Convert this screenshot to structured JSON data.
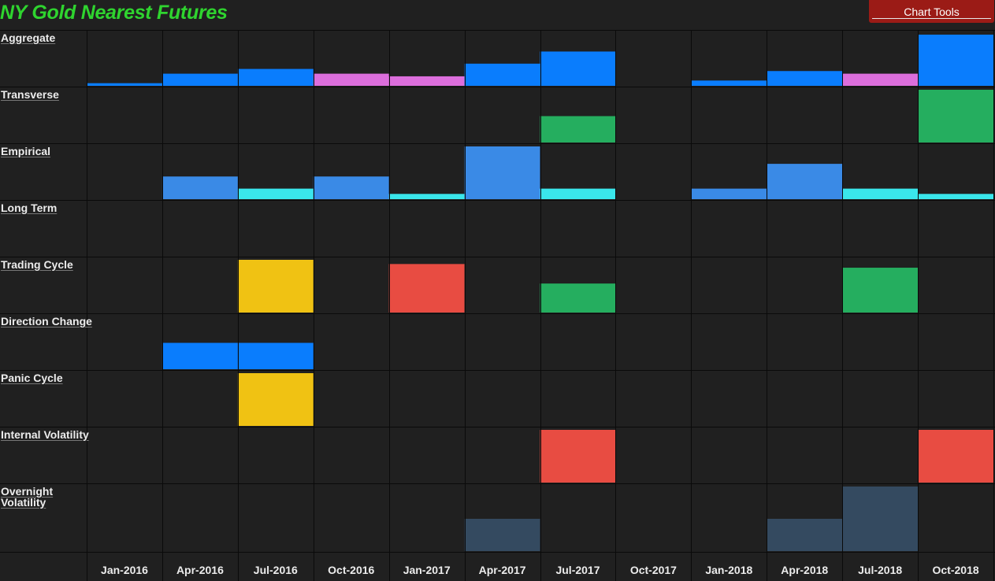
{
  "header": {
    "title": "NY Gold Nearest Futures",
    "chart_tools_label": "Chart Tools"
  },
  "colors": {
    "background": "#202020",
    "grid": "#0a0a0a",
    "blue": "#0a7dfd",
    "pink": "#dc6edc",
    "green": "#25ae5f",
    "lightblue": "#3a8ae6",
    "cyan": "#3ae6eb",
    "yellow": "#f0c213",
    "red": "#e84c42",
    "slate": "#344a60"
  },
  "chart_data": {
    "type": "heatmap",
    "title": "NY Gold Nearest Futures",
    "categories": [
      "Jan-2016",
      "Apr-2016",
      "Jul-2016",
      "Oct-2016",
      "Jan-2017",
      "Apr-2017",
      "Jul-2017",
      "Oct-2017",
      "Jan-2018",
      "Apr-2018",
      "Jul-2018",
      "Oct-2018"
    ],
    "value_scale": "0-1 (fraction of row height)",
    "series": [
      {
        "name": "Aggregate",
        "values": [
          0.05,
          0.23,
          0.32,
          0.23,
          0.18,
          0.42,
          0.65,
          0,
          0.1,
          0.28,
          0.23,
          0.97
        ],
        "colors": [
          "blue",
          "blue",
          "blue",
          "pink",
          "pink",
          "blue",
          "blue",
          "blue",
          "blue",
          "blue",
          "pink",
          "blue"
        ]
      },
      {
        "name": "Transverse",
        "values": [
          0,
          0,
          0,
          0,
          0,
          0,
          0.5,
          0,
          0,
          0,
          0,
          1.0
        ],
        "colors": [
          "green",
          "green",
          "green",
          "green",
          "green",
          "green",
          "green",
          "green",
          "green",
          "green",
          "green",
          "green"
        ]
      },
      {
        "name": "Empirical",
        "values": [
          0,
          0.43,
          0.2,
          0.43,
          0.1,
          1.0,
          0.2,
          0,
          0.2,
          0.67,
          0.2,
          0.1
        ],
        "colors": [
          "lightblue",
          "lightblue",
          "cyan",
          "lightblue",
          "cyan",
          "lightblue",
          "cyan",
          "lightblue",
          "lightblue",
          "lightblue",
          "cyan",
          "cyan"
        ]
      },
      {
        "name": "Long Term",
        "values": [
          0,
          0,
          0,
          0,
          0,
          0,
          0,
          0,
          0,
          0,
          0,
          0
        ],
        "colors": [
          "blue",
          "blue",
          "blue",
          "blue",
          "blue",
          "blue",
          "blue",
          "blue",
          "blue",
          "blue",
          "blue",
          "blue"
        ]
      },
      {
        "name": "Trading Cycle",
        "values": [
          0,
          0,
          1.0,
          0,
          0.92,
          0,
          0.55,
          0,
          0,
          0,
          0.85,
          0
        ],
        "colors": [
          "yellow",
          "yellow",
          "yellow",
          "yellow",
          "red",
          "red",
          "green",
          "green",
          "green",
          "green",
          "green",
          "green"
        ]
      },
      {
        "name": "Direction Change",
        "values": [
          0,
          0.5,
          0.5,
          0,
          0,
          0,
          0,
          0,
          0,
          0,
          0,
          0
        ],
        "colors": [
          "blue",
          "blue",
          "blue",
          "blue",
          "blue",
          "blue",
          "blue",
          "blue",
          "blue",
          "blue",
          "blue",
          "blue"
        ]
      },
      {
        "name": "Panic Cycle",
        "values": [
          0,
          0,
          1.0,
          0,
          0,
          0,
          0,
          0,
          0,
          0,
          0,
          0
        ],
        "colors": [
          "yellow",
          "yellow",
          "yellow",
          "yellow",
          "yellow",
          "yellow",
          "yellow",
          "yellow",
          "yellow",
          "yellow",
          "yellow",
          "yellow"
        ]
      },
      {
        "name": "Internal Volatility",
        "values": [
          0,
          0,
          0,
          0,
          0,
          0,
          1.0,
          0,
          0,
          0,
          0,
          1.0
        ],
        "colors": [
          "red",
          "red",
          "red",
          "red",
          "red",
          "red",
          "red",
          "red",
          "red",
          "red",
          "red",
          "red"
        ]
      },
      {
        "name": "Overnight\nVolatility",
        "values": [
          0,
          0,
          0,
          0,
          0,
          0.5,
          0,
          0,
          0,
          0.5,
          1.0,
          0
        ],
        "colors": [
          "slate",
          "slate",
          "slate",
          "slate",
          "slate",
          "slate",
          "slate",
          "slate",
          "slate",
          "slate",
          "slate",
          "slate"
        ]
      }
    ]
  }
}
